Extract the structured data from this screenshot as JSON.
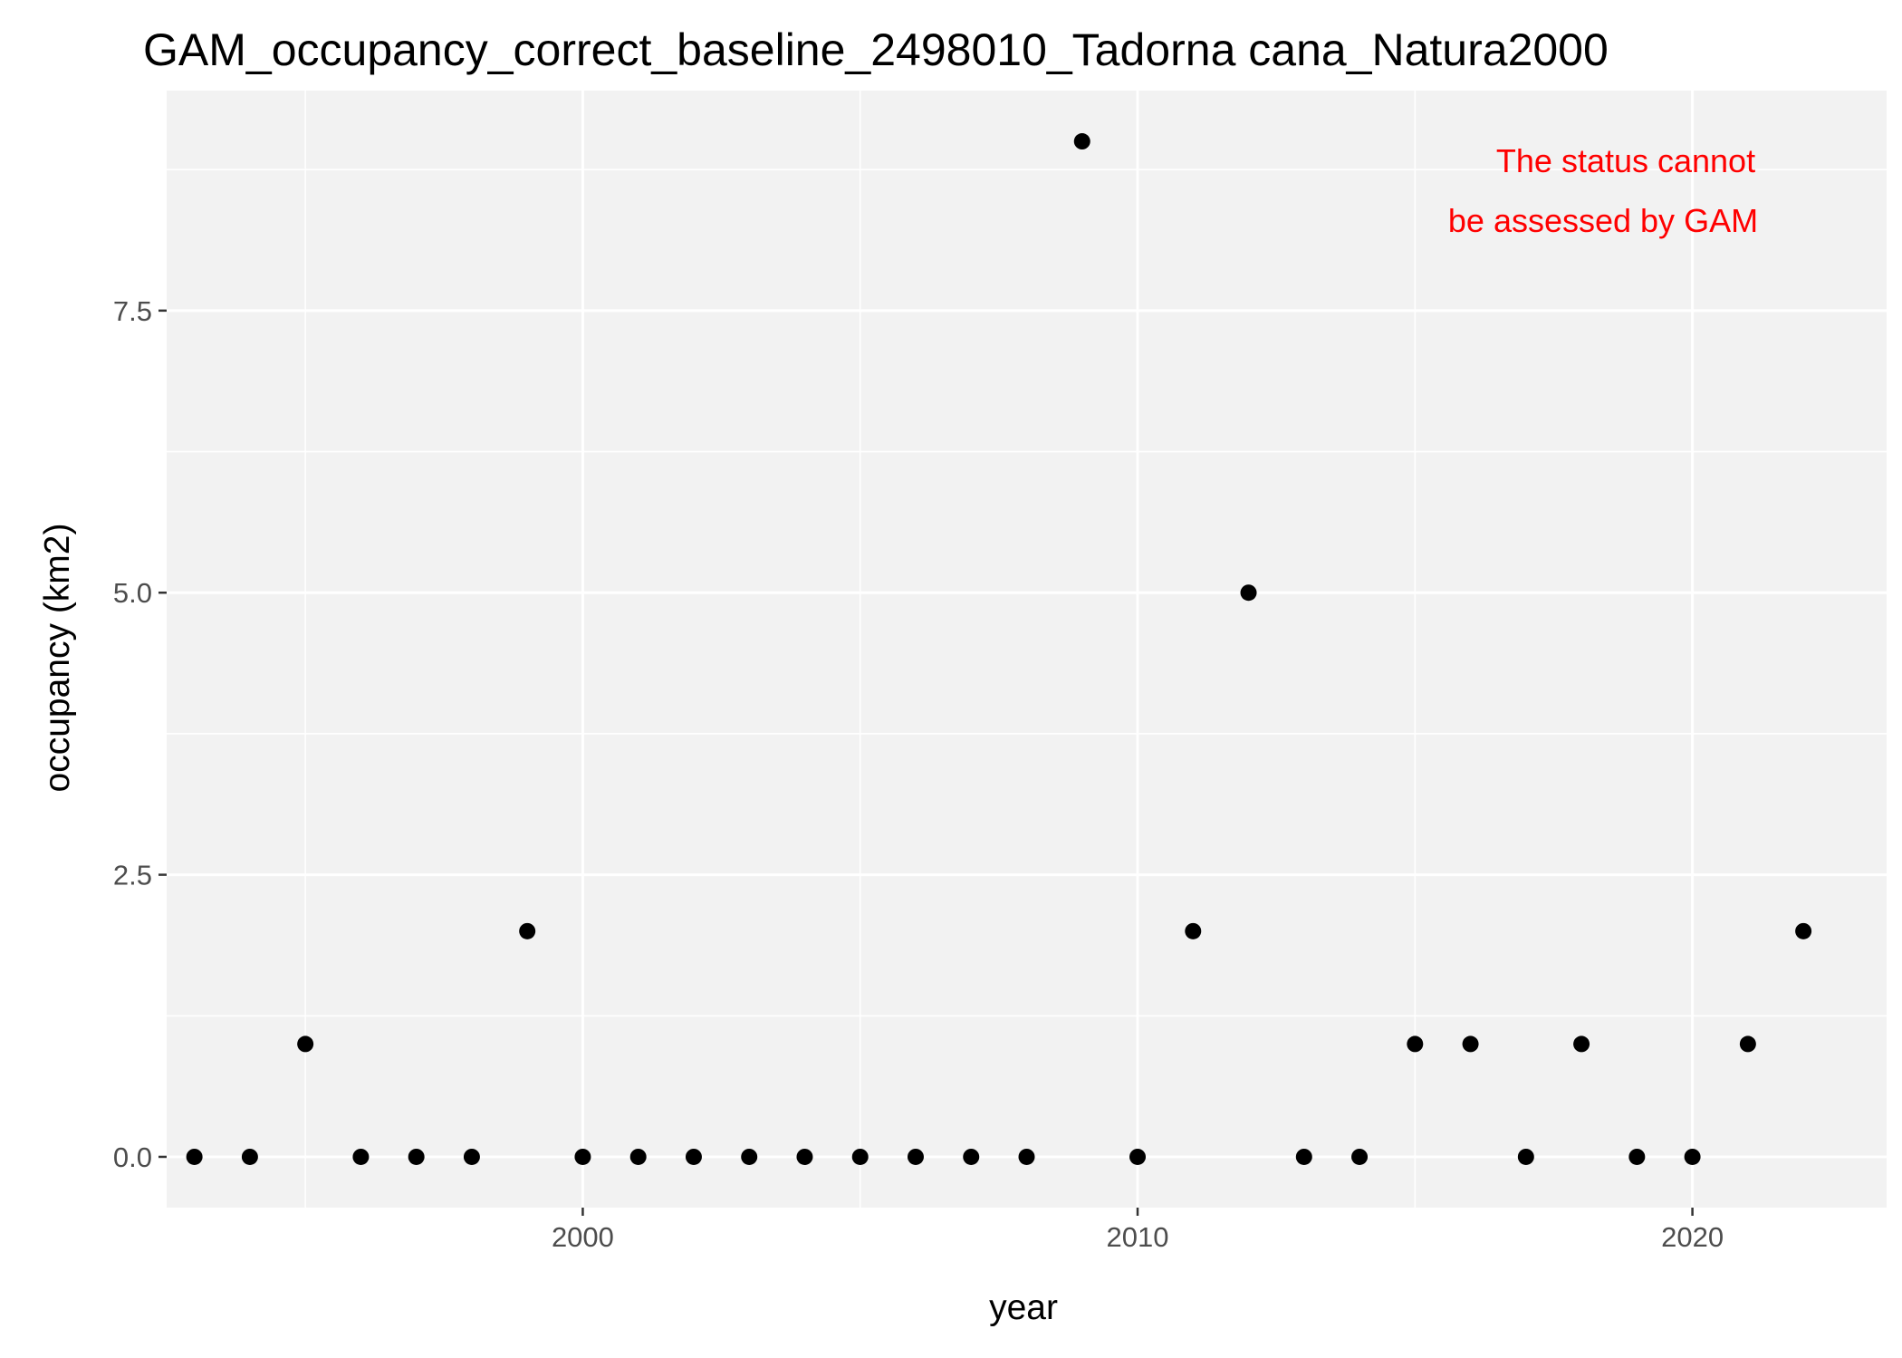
{
  "chart_data": {
    "type": "scatter",
    "title": "GAM_occupancy_correct_baseline_2498010_Tadorna cana_Natura2000",
    "xlabel": "year",
    "ylabel": "occupancy (km2)",
    "xlim": [
      1992.5,
      2023.5
    ],
    "ylim": [
      -0.45,
      9.45
    ],
    "x_ticks": [
      2000,
      2010,
      2020
    ],
    "x_tick_labels": [
      "2000",
      "2010",
      "2020"
    ],
    "x_minor_ticks": [
      1995,
      2005,
      2015
    ],
    "y_ticks": [
      0,
      2.5,
      5,
      7.5
    ],
    "y_tick_labels": [
      "0.0",
      "2.5",
      "5.0",
      "7.5"
    ],
    "y_minor_ticks": [
      1.25,
      3.75,
      6.25,
      8.75
    ],
    "grid": true,
    "legend": "none",
    "points": [
      {
        "x": 1993,
        "y": 0
      },
      {
        "x": 1994,
        "y": 0
      },
      {
        "x": 1995,
        "y": 1
      },
      {
        "x": 1996,
        "y": 0
      },
      {
        "x": 1997,
        "y": 0
      },
      {
        "x": 1998,
        "y": 0
      },
      {
        "x": 1999,
        "y": 2
      },
      {
        "x": 2000,
        "y": 0
      },
      {
        "x": 2001,
        "y": 0
      },
      {
        "x": 2002,
        "y": 0
      },
      {
        "x": 2003,
        "y": 0
      },
      {
        "x": 2004,
        "y": 0
      },
      {
        "x": 2005,
        "y": 0
      },
      {
        "x": 2006,
        "y": 0
      },
      {
        "x": 2007,
        "y": 0
      },
      {
        "x": 2008,
        "y": 0
      },
      {
        "x": 2009,
        "y": 9
      },
      {
        "x": 2010,
        "y": 0
      },
      {
        "x": 2011,
        "y": 2
      },
      {
        "x": 2012,
        "y": 5
      },
      {
        "x": 2013,
        "y": 0
      },
      {
        "x": 2014,
        "y": 0
      },
      {
        "x": 2015,
        "y": 1
      },
      {
        "x": 2016,
        "y": 1
      },
      {
        "x": 2017,
        "y": 0
      },
      {
        "x": 2018,
        "y": 1
      },
      {
        "x": 2019,
        "y": 0
      },
      {
        "x": 2020,
        "y": 0
      },
      {
        "x": 2021,
        "y": 1
      },
      {
        "x": 2022,
        "y": 2
      }
    ],
    "annotation": {
      "lines": [
        "The status cannot",
        "be assessed by GAM"
      ],
      "color": "#ff0000"
    },
    "colors": {
      "panel_background": "#f2f2f2",
      "grid": "#ffffff",
      "point": "#000000"
    }
  }
}
